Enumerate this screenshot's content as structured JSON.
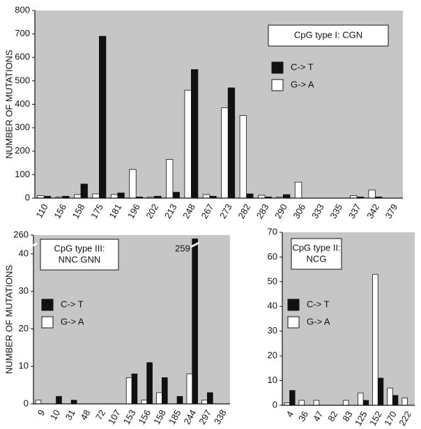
{
  "chart_data": [
    {
      "type": "bar",
      "title": [
        "CpG type I:  CGN"
      ],
      "y_label": "NUMBER OF MUTATIONS",
      "categories": [
        "110",
        "156",
        "158",
        "175",
        "181",
        "196",
        "202",
        "213",
        "248",
        "267",
        "273",
        "282",
        "283",
        "290",
        "306",
        "333",
        "335",
        "337",
        "342",
        "379"
      ],
      "series": [
        {
          "name": "C-> T",
          "color": "#111111",
          "values": [
            8,
            8,
            60,
            690,
            22,
            5,
            8,
            25,
            548,
            8,
            470,
            18,
            5,
            15,
            0,
            0,
            0,
            5,
            5,
            0
          ]
        },
        {
          "name": "G-> A",
          "color": "#ffffff",
          "values": [
            10,
            5,
            15,
            18,
            15,
            122,
            5,
            165,
            460,
            15,
            385,
            352,
            12,
            5,
            68,
            0,
            0,
            10,
            35,
            0
          ]
        }
      ],
      "ylim": [
        0,
        800
      ],
      "yticks": [
        0,
        100,
        200,
        300,
        400,
        500,
        600,
        700,
        800
      ]
    },
    {
      "type": "bar",
      "title": [
        "CpG type III:",
        "NNC GNN"
      ],
      "y_label": "NUMBER OF MUTATIONS",
      "annotation": "259",
      "categories": [
        "9",
        "10",
        "31",
        "48",
        "72",
        "107",
        "153",
        "156",
        "158",
        "185",
        "244",
        "297",
        "338"
      ],
      "series": [
        {
          "name": "C-> T",
          "color": "#111111",
          "values": [
            0,
            2,
            1,
            0,
            0,
            0,
            8,
            11,
            7,
            2,
            259,
            3,
            0
          ]
        },
        {
          "name": "G-> A",
          "color": "#ffffff",
          "values": [
            1,
            0,
            0,
            0,
            0,
            0,
            7,
            1,
            3,
            0,
            8,
            1,
            0
          ]
        }
      ],
      "ylim": [
        0,
        260
      ],
      "ybreak": [
        42.5,
        257.5
      ],
      "yticks": [
        0,
        10,
        20,
        30,
        40,
        260
      ]
    },
    {
      "type": "bar",
      "title": [
        "CpG type II:",
        "NCG"
      ],
      "categories": [
        "4",
        "36",
        "47",
        "82",
        "83",
        "125",
        "152",
        "170",
        "222"
      ],
      "series": [
        {
          "name": "C-> T",
          "color": "#111111",
          "values": [
            6,
            0,
            0,
            0,
            0,
            2,
            11,
            4,
            0
          ]
        },
        {
          "name": "G-> A",
          "color": "#ffffff",
          "values": [
            1,
            2,
            2,
            0,
            2,
            5,
            53,
            7,
            3
          ]
        }
      ],
      "ylim": [
        0,
        70
      ],
      "yticks": [
        0,
        10,
        20,
        30,
        40,
        50,
        60,
        70
      ]
    }
  ]
}
